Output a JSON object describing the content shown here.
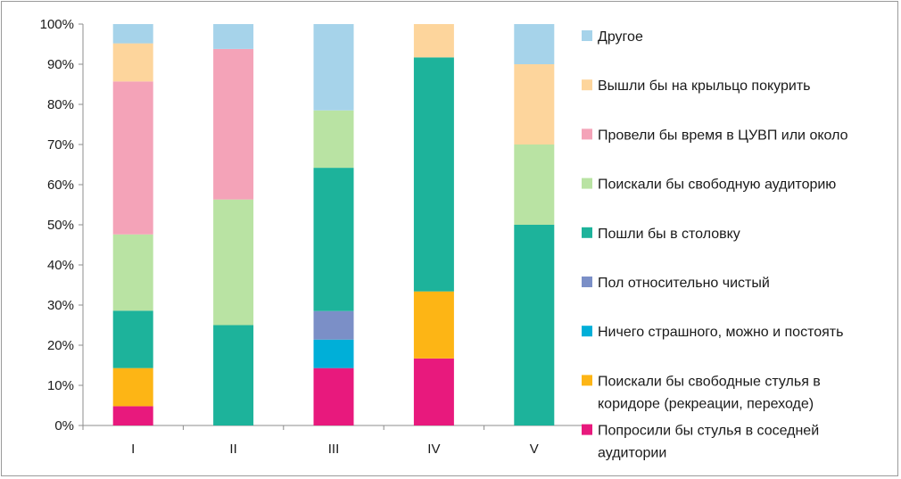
{
  "chart_data": {
    "type": "bar",
    "stacked": true,
    "percent": true,
    "categories": [
      "I",
      "II",
      "III",
      "IV",
      "V"
    ],
    "ylim": [
      0,
      100
    ],
    "yticks": [
      "0%",
      "10%",
      "20%",
      "30%",
      "40%",
      "50%",
      "60%",
      "70%",
      "80%",
      "90%",
      "100%"
    ],
    "grid": false,
    "legend_position": "right",
    "series": [
      {
        "name": "Попросили бы стулья в соседней аудитории",
        "color": "#e8197d",
        "values": [
          4.8,
          0,
          14.3,
          16.7,
          0
        ]
      },
      {
        "name": "Поискали бы свободные стулья в коридоре (рекреации, переходе)",
        "color": "#fdb515",
        "values": [
          9.5,
          0,
          0,
          16.7,
          0
        ]
      },
      {
        "name": "Ничего страшного, можно и постоять",
        "color": "#00afd8",
        "values": [
          0,
          0,
          7.1,
          0,
          0
        ]
      },
      {
        "name": "Пол относительно чистый",
        "color": "#7b8fc7",
        "values": [
          0,
          0,
          7.1,
          0,
          0
        ]
      },
      {
        "name": "Пошли бы в столовку",
        "color": "#1db39b",
        "values": [
          14.3,
          25.0,
          35.7,
          58.3,
          50.0
        ]
      },
      {
        "name": "Поискали бы свободную аудиторию",
        "color": "#b9e3a3",
        "values": [
          19.0,
          31.3,
          14.3,
          0,
          20.0
        ]
      },
      {
        "name": "Провели бы время в ЦУВП или около",
        "color": "#f4a3b8",
        "values": [
          38.1,
          37.5,
          0,
          0,
          0
        ]
      },
      {
        "name": "Вышли бы на крыльцо покурить",
        "color": "#fdd59c",
        "values": [
          9.5,
          0,
          0,
          8.3,
          20.0
        ]
      },
      {
        "name": "Другое",
        "color": "#a6d3ea",
        "values": [
          4.8,
          6.2,
          21.5,
          0,
          10.0
        ]
      }
    ],
    "legend_lines": [
      [
        "Другое"
      ],
      [
        "Вышли бы на крыльцо покурить"
      ],
      [
        "Провели бы время в ЦУВП или около"
      ],
      [
        "Поискали бы свободную аудиторию"
      ],
      [
        "Пошли бы в столовку"
      ],
      [
        "Пол относительно чистый"
      ],
      [
        "Ничего страшного, можно и постоять"
      ],
      [
        "Поискали бы свободные стулья в",
        "коридоре (рекреации, переходе)"
      ],
      [
        "Попросили бы стулья в соседней",
        "аудитории"
      ]
    ]
  }
}
